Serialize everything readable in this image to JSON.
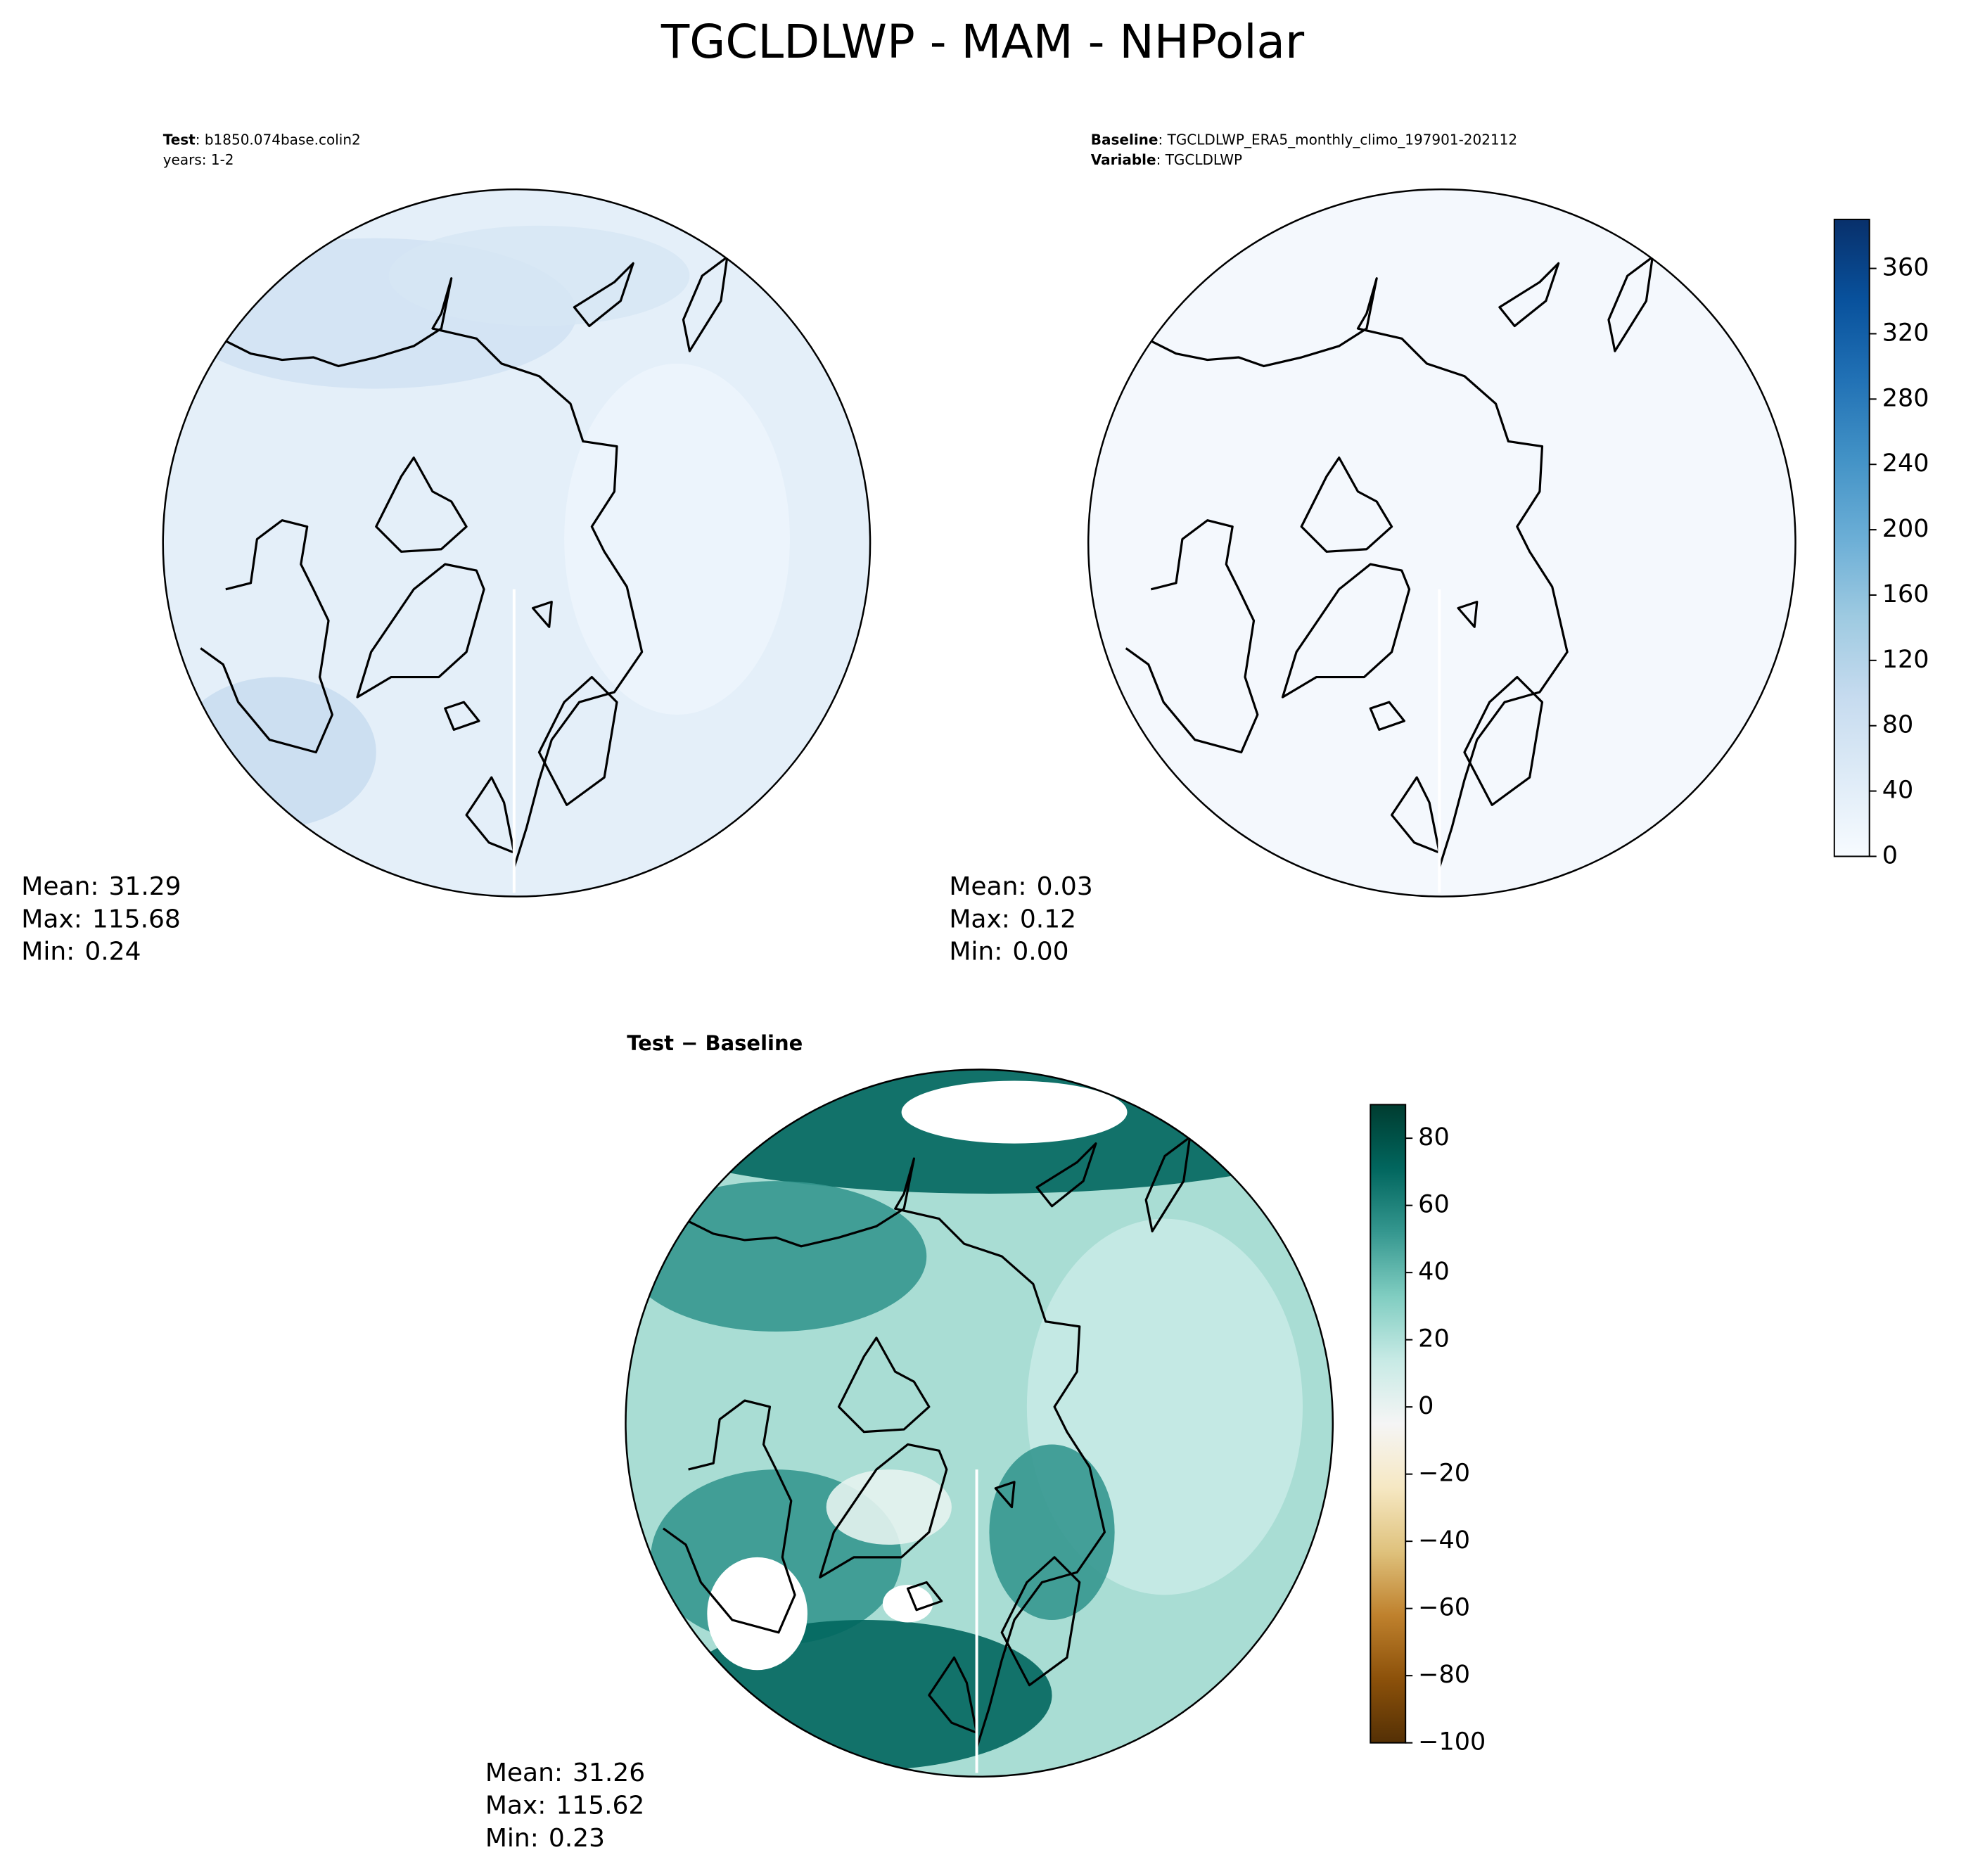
{
  "title": "TGCLDLWP - MAM - NHPolar",
  "chart_data": [
    {
      "type": "map",
      "header": [
        {
          "key": "Test",
          "text": ": b1850.074base.colin2"
        },
        {
          "key": null,
          "text": "years: 1-2"
        }
      ],
      "stats": {
        "labels": [
          "Mean:",
          "Max:",
          "Min:"
        ],
        "values": [
          31.29,
          115.68,
          0.24
        ]
      },
      "fill": "#e4eff9"
    },
    {
      "type": "map",
      "header": [
        {
          "key": "Baseline",
          "text": ": TGCLDLWP_ERA5_monthly_climo_197901-202112"
        },
        {
          "key": "Variable",
          "text": ": TGCLDLWP"
        }
      ],
      "stats": {
        "labels": [
          "Mean:",
          "Max:",
          "Min:"
        ],
        "values": [
          0.03,
          0.12,
          0
        ],
        "value_labels": [
          "0.03",
          "0.12",
          "0.00"
        ]
      },
      "fill": "#f4f8fd",
      "colorbar": {
        "lim": [
          0,
          390
        ],
        "ticks": [
          0,
          40,
          80,
          120,
          160,
          200,
          240,
          280,
          320,
          360
        ],
        "colors": [
          "#f7fbff",
          "#deebf7",
          "#c6dbef",
          "#9ecae1",
          "#6baed6",
          "#4292c6",
          "#2171b5",
          "#08519c",
          "#08306b"
        ]
      }
    },
    {
      "type": "map",
      "title": "Test − Baseline",
      "stats": {
        "labels": [
          "Mean:",
          "Max:",
          "Min:"
        ],
        "values": [
          31.26,
          115.62,
          0.23
        ]
      },
      "fill": "#a9ddd4",
      "colorbar": {
        "lim": [
          -100,
          90
        ],
        "ticks": [
          {
            "value": -100,
            "label": "−100"
          },
          {
            "value": -80,
            "label": "−80"
          },
          {
            "value": -60,
            "label": "−60"
          },
          {
            "value": -40,
            "label": "−40"
          },
          {
            "value": -20,
            "label": "−20"
          },
          0,
          20,
          40,
          60,
          80
        ],
        "colors": [
          "#543005",
          "#8c510a",
          "#bf812d",
          "#dfc27d",
          "#f6e8c3",
          "#f5f5f5",
          "#c7eae5",
          "#80cdc1",
          "#35978f",
          "#01665e",
          "#003c30"
        ]
      }
    }
  ]
}
